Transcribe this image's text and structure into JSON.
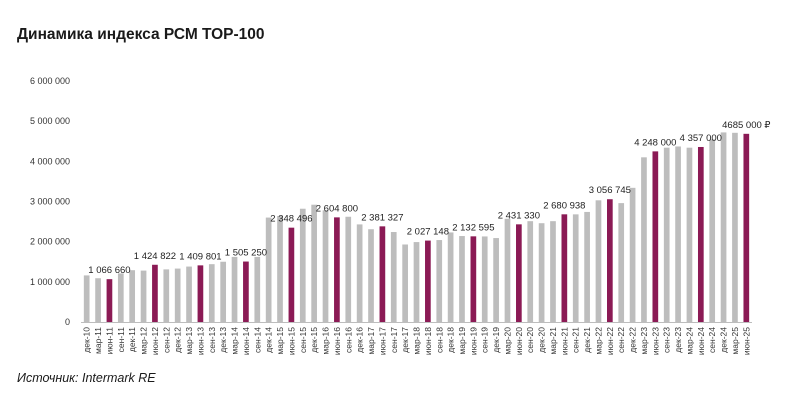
{
  "title": "Динамика индекса РСМ ТОР-100",
  "source": "Источник: Intermark RE",
  "colors": {
    "regular": "#bdbdbd",
    "highlight": "#8b1a55"
  },
  "chart_data": {
    "type": "bar",
    "title": "Динамика индекса РСМ ТОР-100",
    "xlabel": "",
    "ylabel": "",
    "ylim": [
      0,
      6000000
    ],
    "yticks": [
      0,
      1000000,
      2000000,
      3000000,
      4000000,
      5000000,
      6000000
    ],
    "ytick_labels": [
      "0",
      "1 000 000",
      "2 000 000",
      "3 000 000",
      "4 000 000",
      "5 000 000",
      "6 000 000"
    ],
    "grid": false,
    "legend": "none",
    "categories": [
      "дек-10",
      "мар-11",
      "июн-11",
      "сен-11",
      "дек-11",
      "мар-12",
      "июн-12",
      "сен-12",
      "дек-12",
      "мар-13",
      "июн-13",
      "сен-13",
      "дек-13",
      "мар-14",
      "июн-14",
      "сен-14",
      "дек-14",
      "мар-15",
      "июн-15",
      "сен-15",
      "дек-15",
      "мар-16",
      "июн-16",
      "сен-16",
      "дек-16",
      "мар-17",
      "июн-17",
      "сен-17",
      "дек-17",
      "мар-18",
      "июн-18",
      "сен-18",
      "дек-18",
      "мар-19",
      "июн-19",
      "сен-19",
      "дек-19",
      "мар-20",
      "июн-20",
      "сен-20",
      "дек-20",
      "мар-21",
      "июн-21",
      "сен-21",
      "дек-21",
      "мар-22",
      "июн-22",
      "сен-22",
      "дек-22",
      "мар-23",
      "июн-23",
      "сен-23",
      "дек-23",
      "мар-24",
      "июн-24",
      "сен-24",
      "дек-24",
      "мар-25",
      "июн-25"
    ],
    "x_tick_labels": [
      "дек-10",
      "мар-11",
      "июн-11",
      "сен-11",
      "дек-11",
      "мар-12",
      "июн-12",
      "сен-12",
      "дек-12",
      "мар-13",
      "июн-13",
      "сен-13",
      "дек-13",
      "мар-14",
      "июн-14",
      "сен-14",
      "дек-14",
      "мар-15",
      "июн-15",
      "сен-15",
      "дек-15",
      "мар-16",
      "июн-16",
      "сен-16",
      "дек-16",
      "мар-17",
      "июн-17",
      "сен-17",
      "дек-17",
      "мар-18",
      "июн-18",
      "сен-18",
      "дек-18",
      "мар-19",
      "июн-19",
      "сен-19",
      "дек-19",
      "мар-20",
      "июн-20",
      "сен-20",
      "дек-20",
      "мар-21",
      "июн-21",
      "сен-21",
      "дек-21",
      "мар-22",
      "июн-22",
      "сен-22",
      "дек-22",
      "мар-23",
      "июн-23",
      "сен-23",
      "дек-23",
      "мар-24",
      "июн-24",
      "сен-24",
      "дек-24",
      "мар-25",
      "июн-25"
    ],
    "values": [
      1160000,
      1090000,
      1066660,
      1210000,
      1290000,
      1280000,
      1424822,
      1310000,
      1330000,
      1380000,
      1409801,
      1440000,
      1500000,
      1620000,
      1505250,
      1620000,
      2600000,
      2640000,
      2348496,
      2820000,
      2920000,
      2780000,
      2604800,
      2620000,
      2430000,
      2310000,
      2381327,
      2240000,
      1930000,
      1990000,
      2027148,
      2040000,
      2230000,
      2140000,
      2132595,
      2130000,
      2090000,
      2570000,
      2431330,
      2510000,
      2460000,
      2510000,
      2680938,
      2680000,
      2740000,
      3030000,
      3056745,
      2960000,
      3340000,
      4100000,
      4248000,
      4340000,
      4370000,
      4340000,
      4357000,
      4550000,
      4720000,
      4710000,
      4685000
    ],
    "highlight": [
      false,
      false,
      true,
      false,
      false,
      false,
      true,
      false,
      false,
      false,
      true,
      false,
      false,
      false,
      true,
      false,
      false,
      false,
      true,
      false,
      false,
      false,
      true,
      false,
      false,
      false,
      true,
      false,
      false,
      false,
      true,
      false,
      false,
      false,
      true,
      false,
      false,
      false,
      true,
      false,
      false,
      false,
      true,
      false,
      false,
      false,
      true,
      false,
      false,
      false,
      true,
      false,
      false,
      false,
      true,
      false,
      false,
      false,
      true
    ],
    "data_labels": [
      {
        "index": 2,
        "text": "1 066 660"
      },
      {
        "index": 6,
        "text": "1 424 822"
      },
      {
        "index": 10,
        "text": "1 409 801"
      },
      {
        "index": 14,
        "text": "1 505 250"
      },
      {
        "index": 18,
        "text": "2 348 496"
      },
      {
        "index": 22,
        "text": "2 604 800"
      },
      {
        "index": 26,
        "text": "2 381 327"
      },
      {
        "index": 30,
        "text": "2 027 148"
      },
      {
        "index": 34,
        "text": "2 132 595"
      },
      {
        "index": 38,
        "text": "2 431 330"
      },
      {
        "index": 42,
        "text": "2 680 938"
      },
      {
        "index": 46,
        "text": "3 056 745"
      },
      {
        "index": 50,
        "text": "4 248 000"
      },
      {
        "index": 54,
        "text": "4 357 000"
      },
      {
        "index": 58,
        "text": "4685 000 ₽"
      }
    ]
  }
}
